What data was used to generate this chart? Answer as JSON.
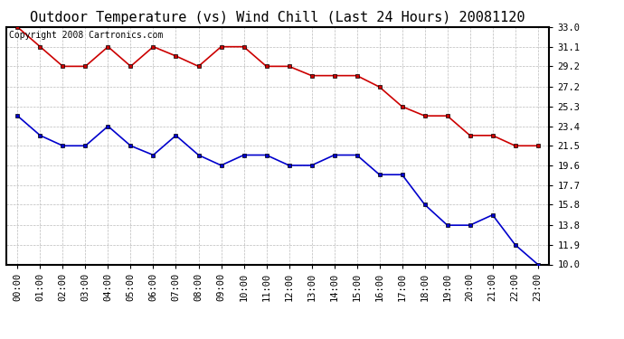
{
  "title": "Outdoor Temperature (vs) Wind Chill (Last 24 Hours) 20081120",
  "copyright_text": "Copyright 2008 Cartronics.com",
  "hours": [
    0,
    1,
    2,
    3,
    4,
    5,
    6,
    7,
    8,
    9,
    10,
    11,
    12,
    13,
    14,
    15,
    16,
    17,
    18,
    19,
    20,
    21,
    22,
    23
  ],
  "hour_labels": [
    "00:00",
    "01:00",
    "02:00",
    "03:00",
    "04:00",
    "05:00",
    "06:00",
    "07:00",
    "08:00",
    "09:00",
    "10:00",
    "11:00",
    "12:00",
    "13:00",
    "14:00",
    "15:00",
    "16:00",
    "17:00",
    "18:00",
    "19:00",
    "20:00",
    "21:00",
    "22:00",
    "23:00"
  ],
  "temp_red": [
    33.0,
    31.1,
    29.2,
    29.2,
    31.1,
    29.2,
    31.1,
    30.2,
    29.2,
    31.1,
    31.1,
    29.2,
    29.2,
    28.3,
    28.3,
    28.3,
    27.2,
    25.3,
    24.4,
    24.4,
    22.5,
    22.5,
    21.5,
    21.5
  ],
  "wind_blue": [
    24.4,
    22.5,
    21.5,
    21.5,
    23.4,
    21.5,
    20.6,
    22.5,
    20.6,
    19.6,
    20.6,
    20.6,
    19.6,
    19.6,
    20.6,
    20.6,
    18.7,
    18.7,
    15.8,
    13.8,
    13.8,
    14.8,
    11.9,
    10.0
  ],
  "ylim": [
    10.0,
    33.0
  ],
  "yticks": [
    10.0,
    11.9,
    13.8,
    15.8,
    17.7,
    19.6,
    21.5,
    23.4,
    25.3,
    27.2,
    29.2,
    31.1,
    33.0
  ],
  "red_color": "#cc0000",
  "blue_color": "#0000cc",
  "marker_color": "#000000",
  "background_color": "#ffffff",
  "grid_color": "#bbbbbb",
  "title_fontsize": 11,
  "tick_fontsize": 7.5,
  "copyright_fontsize": 7
}
